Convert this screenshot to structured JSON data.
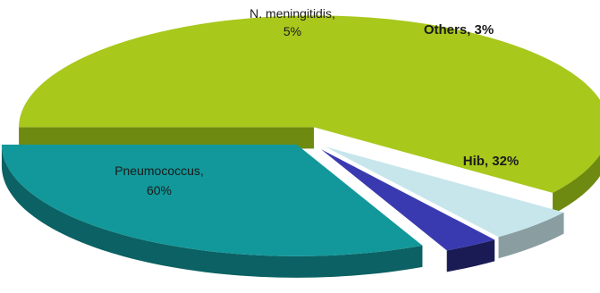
{
  "chart_data": {
    "type": "pie",
    "title": "",
    "series": [
      {
        "label_lines": [
          "Pneumococcus,",
          "60%"
        ],
        "name": "Pneumococcus",
        "value": 60,
        "color": "#a8c81c",
        "side_color": "#6f8a10",
        "bold": false
      },
      {
        "label_lines": [
          "N. meningitidis,",
          "5%"
        ],
        "name": "N. meningitidis",
        "value": 5,
        "color": "#c7e6ec",
        "side_color": "#8a9ea2",
        "bold": false
      },
      {
        "label_lines": [
          "Others, 3%"
        ],
        "name": "Others",
        "value": 3,
        "color": "#3a3ab0",
        "side_color": "#1a1a55",
        "bold": true
      },
      {
        "label_lines": [
          "Hib, 32%"
        ],
        "name": "Hib",
        "value": 32,
        "color": "#12989a",
        "side_color": "#0b6163",
        "bold": true
      }
    ]
  }
}
